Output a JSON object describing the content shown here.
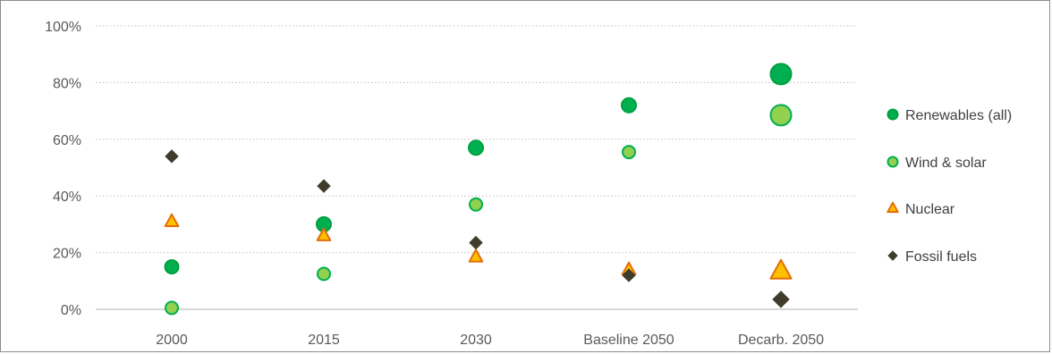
{
  "chart_data": {
    "type": "scatter",
    "categories": [
      "2000",
      "2015",
      "2030",
      "Baseline 2050",
      "Decarb. 2050"
    ],
    "y_ticks": [
      "0%",
      "20%",
      "40%",
      "60%",
      "80%",
      "100%"
    ],
    "ylim": [
      0,
      100
    ],
    "grid": true,
    "legend_position": "right",
    "series": [
      {
        "name": "Renewables (all)",
        "marker": "circle",
        "color": "#00b050",
        "edge": "#00a040",
        "values": [
          15,
          30,
          57,
          72,
          83
        ]
      },
      {
        "name": "Wind & solar",
        "marker": "circle",
        "color": "#92d050",
        "edge": "#00b050",
        "values": [
          0.5,
          12.5,
          37,
          55.5,
          68.5
        ]
      },
      {
        "name": "Nuclear",
        "marker": "triangle",
        "color": "#ffc000",
        "edge": "#e36c09",
        "values": [
          31,
          26,
          18.5,
          14,
          13.5
        ]
      },
      {
        "name": "Fossil fuels",
        "marker": "diamond",
        "color": "#403c2c",
        "edge": "#403c2c",
        "values": [
          54,
          43.5,
          23.5,
          12,
          3.5
        ]
      }
    ]
  }
}
